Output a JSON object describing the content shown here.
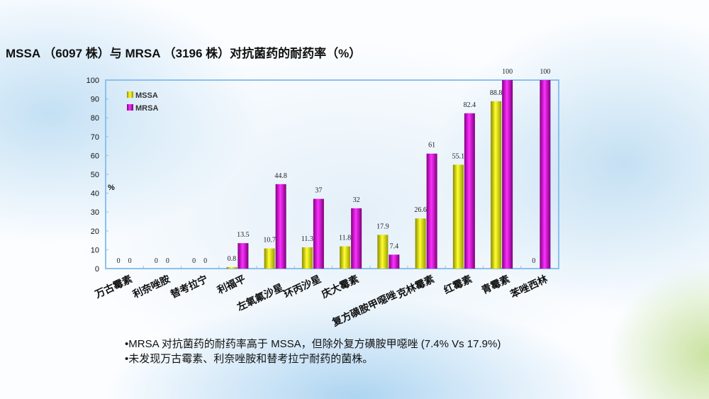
{
  "title": "MSSA （6097 株）与 MRSA （3196 株）对抗菌药的耐药率（%）",
  "chart_data": {
    "type": "bar",
    "title": "MSSA （6097 株）与 MRSA （3196 株）对抗菌药的耐药率（%）",
    "ylabel": "%",
    "xlabel": "",
    "ylim": [
      0,
      100
    ],
    "yticks": [
      0,
      10,
      20,
      30,
      40,
      50,
      60,
      70,
      80,
      90,
      100
    ],
    "grid": false,
    "legend": "top-left",
    "categories": [
      "万古霉素",
      "利奈唑胺",
      "替考拉宁",
      "利福平",
      "左氧氟沙星",
      "环丙沙星",
      "庆大霉素",
      "复方磺胺甲噁唑",
      "克林霉素",
      "红霉素",
      "青霉素",
      "苯唑西林"
    ],
    "series": [
      {
        "name": "MSSA",
        "color": "#e6e600",
        "values": [
          0,
          0,
          0,
          0.8,
          10.7,
          11.3,
          11.8,
          17.9,
          26.6,
          55.1,
          88.8,
          0
        ]
      },
      {
        "name": "MRSA",
        "color": "#d400d4",
        "values": [
          0,
          0,
          0,
          13.5,
          44.8,
          37,
          32,
          7.4,
          61,
          82.4,
          100,
          100
        ]
      }
    ]
  },
  "bullets": [
    "•MRSA 对抗菌药的耐药率高于 MSSA，但除外复方磺胺甲噁唑 (7.4% Vs 17.9%)",
    "•未发现万古霉素、利奈唑胺和替考拉宁耐药的菌株。"
  ]
}
